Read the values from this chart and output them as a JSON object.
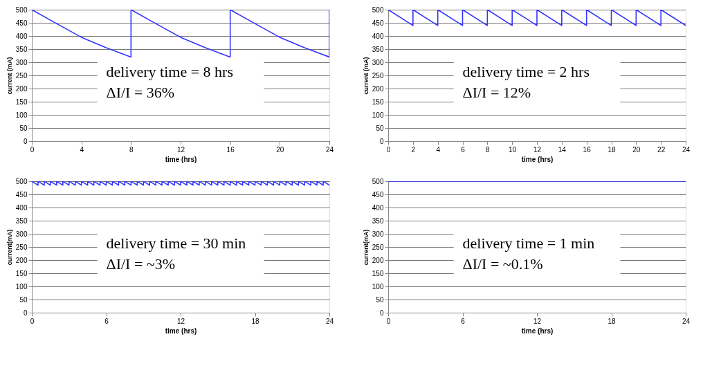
{
  "chart_data": [
    {
      "type": "line",
      "xlabel": "time (hrs)",
      "ylabel": "current (mA)",
      "xlim": [
        0,
        24
      ],
      "xticks": [
        0,
        4,
        8,
        12,
        16,
        20,
        24
      ],
      "ylim": [
        0,
        500
      ],
      "yticks": [
        0,
        50,
        100,
        150,
        200,
        250,
        300,
        350,
        400,
        450,
        500
      ],
      "grid": "y",
      "marker": "none",
      "x": [
        0,
        2,
        4,
        6,
        8,
        8,
        10,
        12,
        14,
        16,
        16,
        18,
        20,
        22,
        24,
        24
      ],
      "series": [
        {
          "color": "#3333ff",
          "values": [
            500,
            447,
            395,
            355,
            320,
            500,
            447,
            395,
            355,
            320,
            500,
            447,
            395,
            355,
            320,
            500
          ]
        }
      ],
      "annotations": [
        "delivery time = 8 hrs",
        "ΔI/I = 36%"
      ]
    },
    {
      "type": "line",
      "xlabel": "time (hrs)",
      "ylabel": "current (mA)",
      "xlim": [
        0,
        24
      ],
      "xticks": [
        0,
        2,
        4,
        6,
        8,
        10,
        12,
        14,
        16,
        18,
        20,
        22,
        24
      ],
      "ylim": [
        0,
        500
      ],
      "yticks": [
        0,
        50,
        100,
        150,
        200,
        250,
        300,
        350,
        400,
        450,
        500
      ],
      "grid": "y",
      "marker": "none",
      "x": [
        0,
        2,
        2,
        4,
        4,
        6,
        6,
        8,
        8,
        10,
        10,
        12,
        12,
        14,
        14,
        16,
        16,
        18,
        18,
        20,
        20,
        22,
        22,
        24
      ],
      "series": [
        {
          "color": "#3333ff",
          "values": [
            500,
            440,
            500,
            440,
            500,
            440,
            500,
            440,
            500,
            440,
            500,
            440,
            500,
            440,
            500,
            440,
            500,
            440,
            500,
            440,
            500,
            440,
            500,
            440
          ]
        }
      ],
      "annotations": [
        "delivery time = 2 hrs",
        "ΔI/I = 12%"
      ]
    },
    {
      "type": "line",
      "xlabel": "time (hrs)",
      "ylabel": "current(mA)",
      "xlim": [
        0,
        24
      ],
      "xticks": [
        0,
        6,
        12,
        18,
        24
      ],
      "ylim": [
        0,
        500
      ],
      "yticks": [
        0,
        50,
        100,
        150,
        200,
        250,
        300,
        350,
        400,
        450,
        500
      ],
      "grid": "y",
      "marker": "none",
      "x": [
        0,
        0.5,
        0.5,
        1,
        1,
        1.5,
        1.5,
        2,
        2,
        2.5,
        2.5,
        3,
        3,
        3.5,
        3.5,
        4,
        4,
        4.5,
        4.5,
        5,
        5,
        5.5,
        5.5,
        6,
        6,
        6.5,
        6.5,
        7,
        7,
        7.5,
        7.5,
        8,
        8,
        8.5,
        8.5,
        9,
        9,
        9.5,
        9.5,
        10,
        10,
        10.5,
        10.5,
        11,
        11,
        11.5,
        11.5,
        12,
        12,
        12.5,
        12.5,
        13,
        13,
        13.5,
        13.5,
        14,
        14,
        14.5,
        14.5,
        15,
        15,
        15.5,
        15.5,
        16,
        16,
        16.5,
        16.5,
        17,
        17,
        17.5,
        17.5,
        18,
        18,
        18.5,
        18.5,
        19,
        19,
        19.5,
        19.5,
        20,
        20,
        20.5,
        20.5,
        21,
        21,
        21.5,
        21.5,
        22,
        22,
        22.5,
        22.5,
        23,
        23,
        23.5,
        23.5,
        24
      ],
      "series": [
        {
          "color": "#3333ff",
          "values": [
            500,
            485,
            500,
            485,
            500,
            485,
            500,
            485,
            500,
            485,
            500,
            485,
            500,
            485,
            500,
            485,
            500,
            485,
            500,
            485,
            500,
            485,
            500,
            485,
            500,
            485,
            500,
            485,
            500,
            485,
            500,
            485,
            500,
            485,
            500,
            485,
            500,
            485,
            500,
            485,
            500,
            485,
            500,
            485,
            500,
            485,
            500,
            485,
            500,
            485,
            500,
            485,
            500,
            485,
            500,
            485,
            500,
            485,
            500,
            485,
            500,
            485,
            500,
            485,
            500,
            485,
            500,
            485,
            500,
            485,
            500,
            485,
            500,
            485,
            500,
            485,
            500,
            485,
            500,
            485,
            500,
            485,
            500,
            485,
            500,
            485,
            500,
            485,
            500,
            485,
            500,
            485,
            500,
            485,
            500,
            485
          ]
        }
      ],
      "annotations": [
        "delivery time = 30 min",
        "ΔI/I = ~3%"
      ]
    },
    {
      "type": "line",
      "xlabel": "time (hrs)",
      "ylabel": "current(mA)",
      "xlim": [
        0,
        24
      ],
      "xticks": [
        0,
        6,
        12,
        18,
        24
      ],
      "ylim": [
        0,
        500
      ],
      "yticks": [
        0,
        50,
        100,
        150,
        200,
        250,
        300,
        350,
        400,
        450,
        500
      ],
      "grid": "y",
      "marker": "none",
      "x": [
        0,
        24
      ],
      "series": [
        {
          "color": "#3333ff",
          "values": [
            500,
            500
          ]
        }
      ],
      "annotations": [
        "delivery time = 1 min",
        "ΔI/I = ~0.1%"
      ]
    }
  ]
}
